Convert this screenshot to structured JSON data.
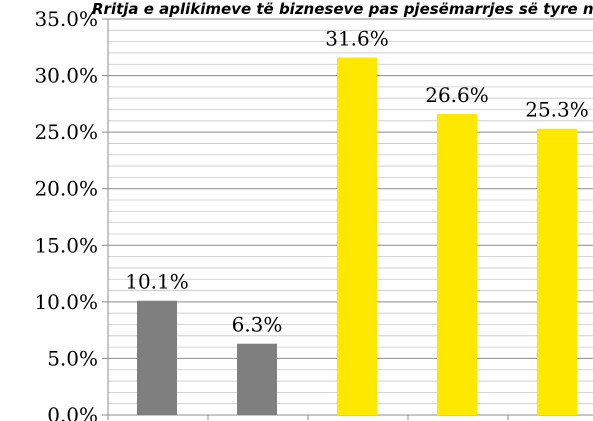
{
  "chart_data": {
    "type": "bar",
    "title": "Rritja e aplikimeve të bizneseve pas pjesëmarrjes së tyre në trajnime",
    "categories": [
      "",
      "",
      "",
      "",
      ""
    ],
    "values": [
      10.1,
      6.3,
      31.6,
      26.6,
      25.3
    ],
    "data_labels": [
      "10.1%",
      "6.3%",
      "31.6%",
      "26.6%",
      "25.3%"
    ],
    "bar_colors": [
      "#7f7f7f",
      "#7f7f7f",
      "#ffe800",
      "#ffe800",
      "#ffe800"
    ],
    "ylim": [
      0,
      35
    ],
    "y_ticks": [
      0,
      5,
      10,
      15,
      20,
      25,
      30,
      35
    ],
    "y_tick_labels": [
      "0.0%",
      "5.0%",
      "10.0%",
      "15.0%",
      "20.0%",
      "25.0%",
      "30.0%",
      "35.0%"
    ],
    "xlabel": "",
    "ylabel": "",
    "grid": true,
    "minor_grid": true,
    "legend": "none"
  }
}
